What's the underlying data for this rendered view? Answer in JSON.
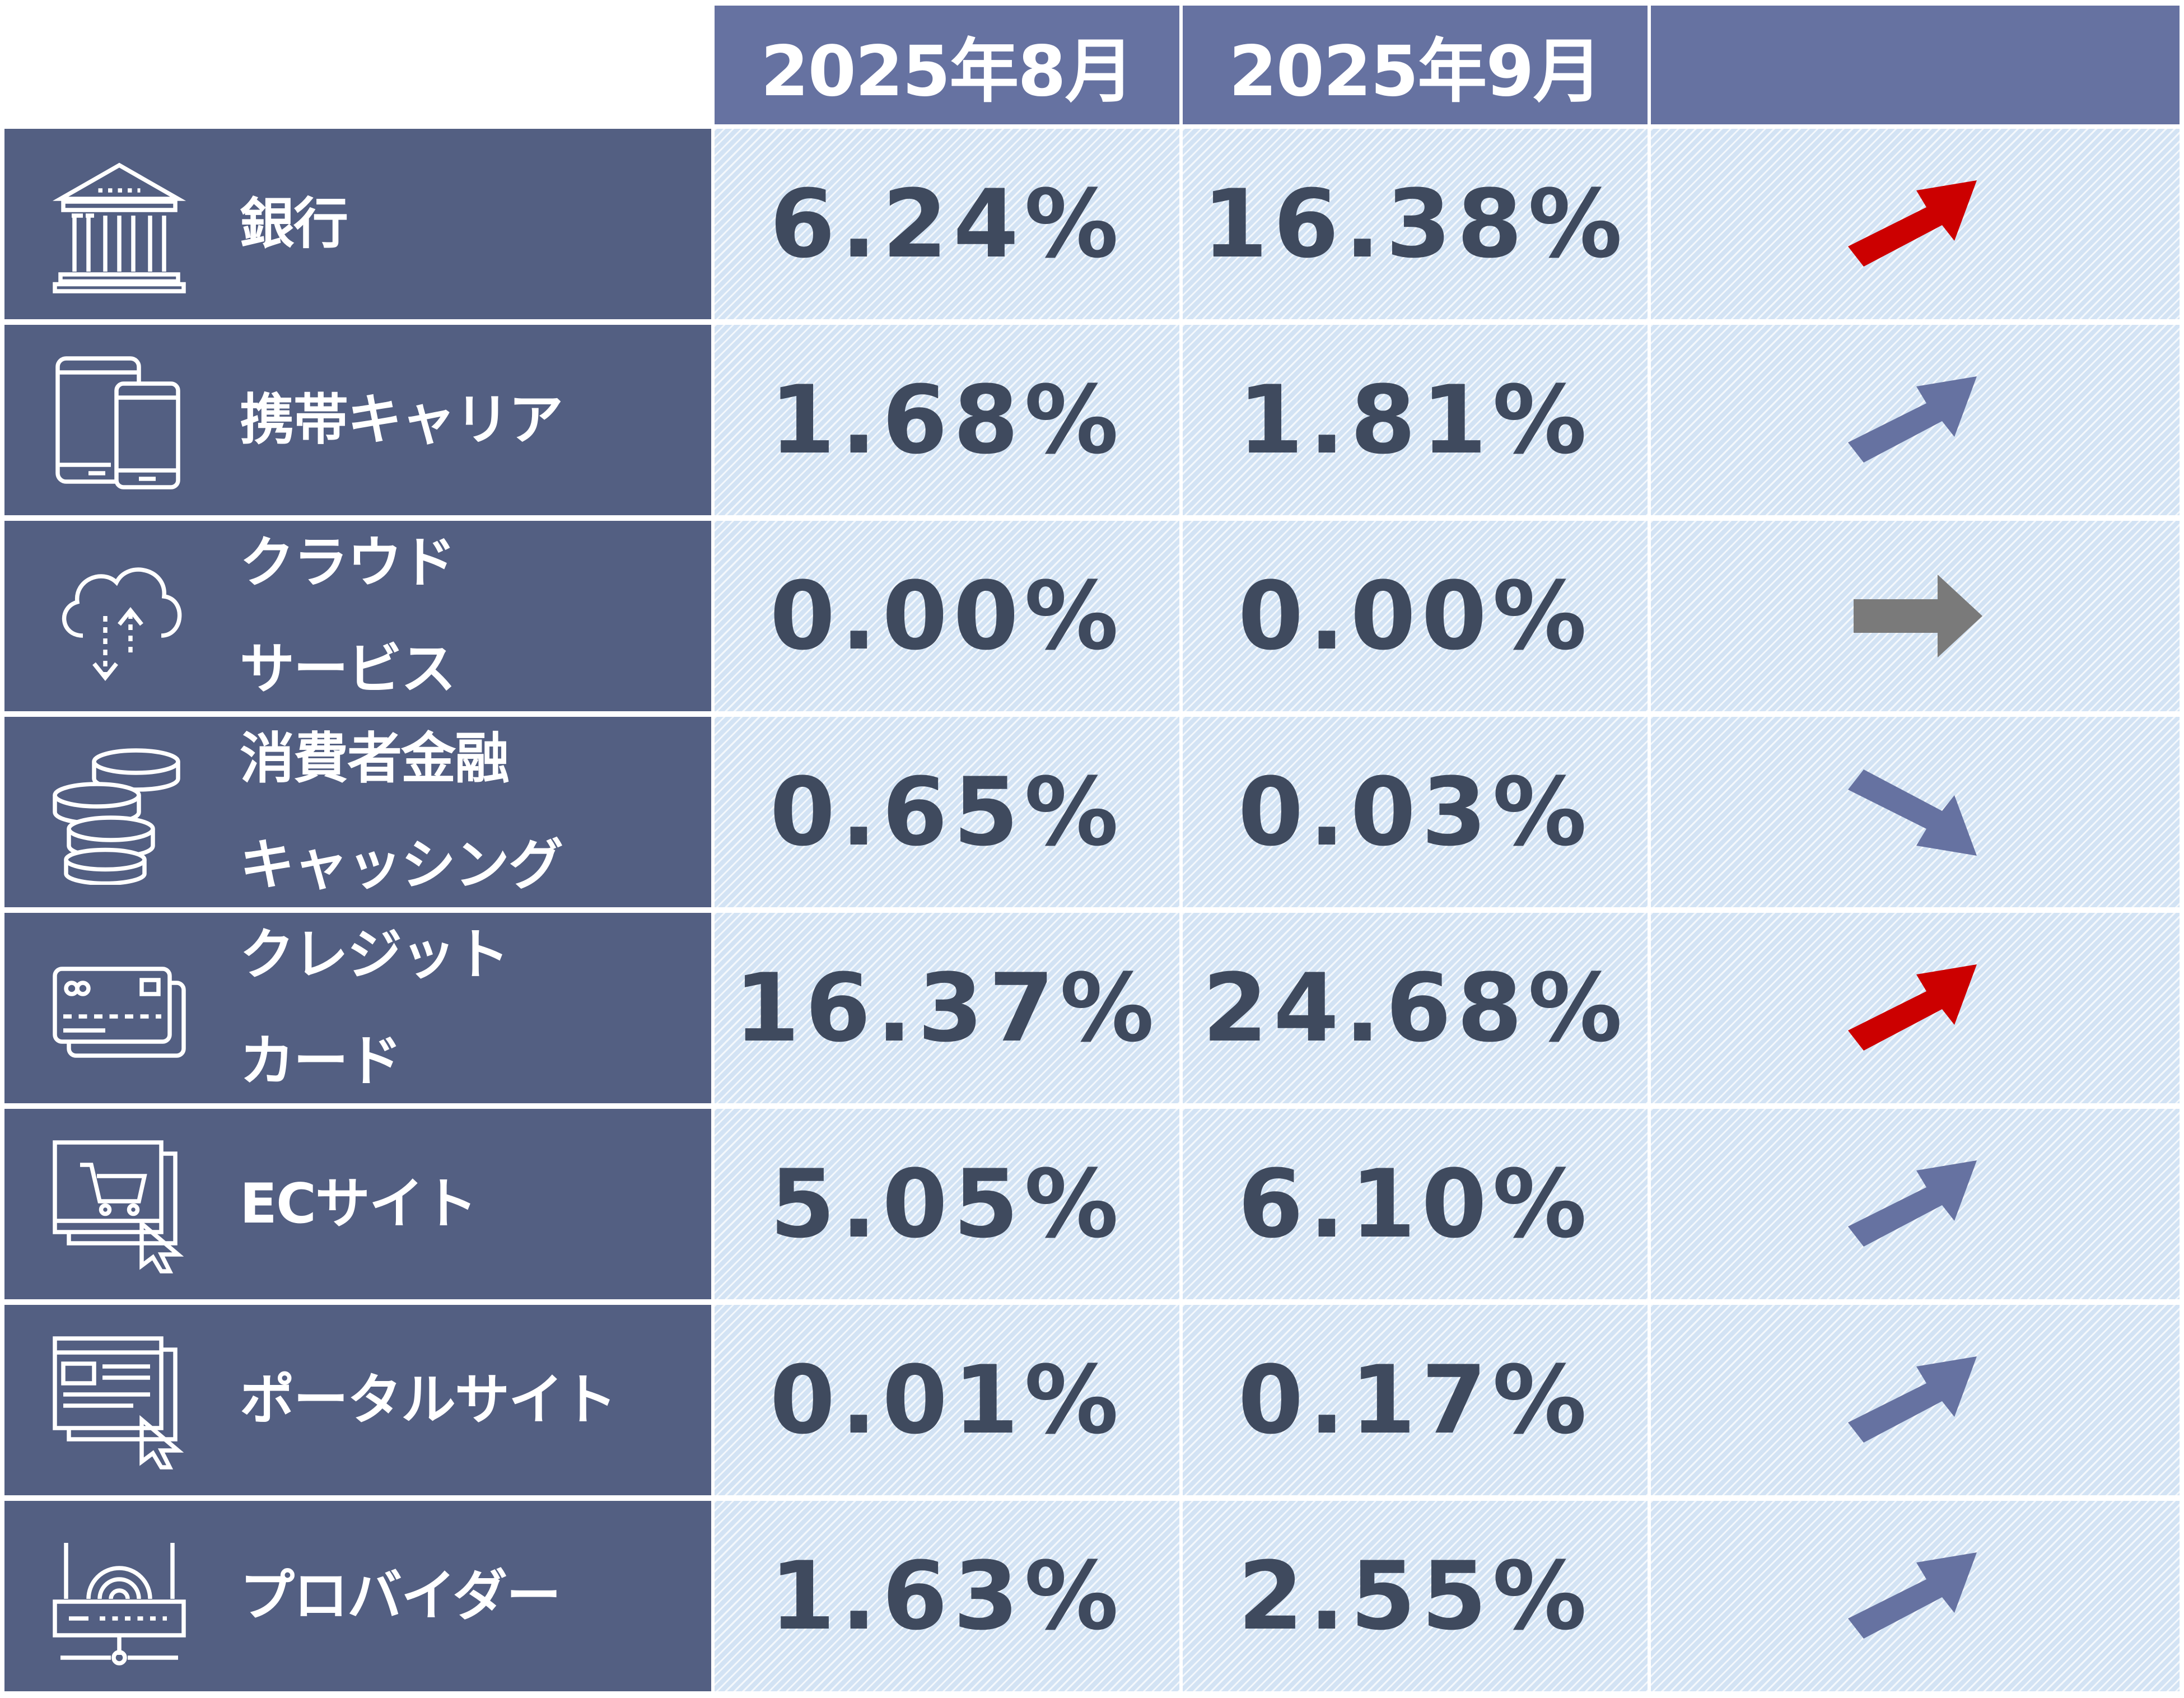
{
  "header": {
    "columns": [
      "2025年8月",
      "2025年9月",
      ""
    ]
  },
  "colors": {
    "header_bg": "#6672a1",
    "label_bg": "#535f82",
    "cell_bg": "#d3e3f4",
    "value_text": "#3f4a5e",
    "arrow_up_highlight": "#cc0000",
    "arrow_normal": "#6672a1",
    "arrow_flat": "#7a7a7a"
  },
  "rows": [
    {
      "label": [
        "銀行"
      ],
      "icon": "bank-icon",
      "aug": "6.24%",
      "sep": "16.38%",
      "trend": "up",
      "arrow_color": "#cc0000"
    },
    {
      "label": [
        "携帯キャリア"
      ],
      "icon": "mobile-devices-icon",
      "aug": "1.68%",
      "sep": "1.81%",
      "trend": "up",
      "arrow_color": "#6672a1"
    },
    {
      "label": [
        "クラウド",
        "サービス"
      ],
      "icon": "cloud-sync-icon",
      "aug": "0.00%",
      "sep": "0.00%",
      "trend": "flat",
      "arrow_color": "#7a7a7a"
    },
    {
      "label": [
        "消費者金融",
        "キャッシング"
      ],
      "icon": "coin-stack-icon",
      "aug": "0.65%",
      "sep": "0.03%",
      "trend": "down",
      "arrow_color": "#6672a1"
    },
    {
      "label": [
        "クレジット",
        "カード"
      ],
      "icon": "credit-card-icon",
      "aug": "16.37%",
      "sep": "24.68%",
      "trend": "up",
      "arrow_color": "#cc0000"
    },
    {
      "label": [
        "ECサイト"
      ],
      "icon": "shopping-cart-screen-icon",
      "aug": "5.05%",
      "sep": "6.10%",
      "trend": "up",
      "arrow_color": "#6672a1"
    },
    {
      "label": [
        "ポータルサイト"
      ],
      "icon": "web-portal-icon",
      "aug": "0.01%",
      "sep": "0.17%",
      "trend": "up",
      "arrow_color": "#6672a1"
    },
    {
      "label": [
        "プロバイダー"
      ],
      "icon": "router-icon",
      "aug": "1.63%",
      "sep": "2.55%",
      "trend": "up",
      "arrow_color": "#6672a1"
    }
  ]
}
